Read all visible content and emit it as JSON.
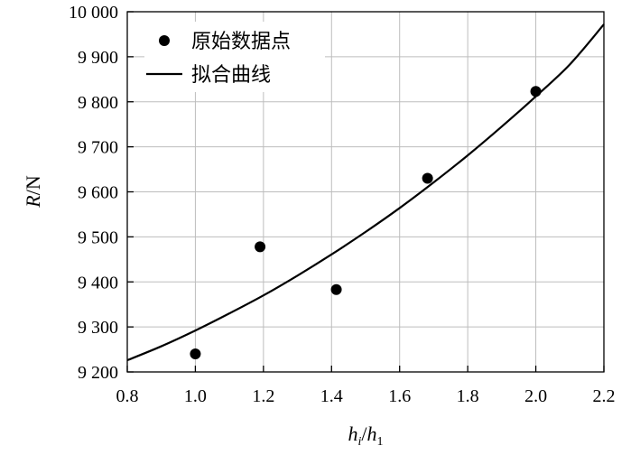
{
  "chart_data": {
    "type": "scatter",
    "xlabel": "h_i/h_1",
    "ylabel": "R/N",
    "xlim": [
      0.8,
      2.2
    ],
    "ylim": [
      9200,
      10000
    ],
    "x_ticks": [
      "0.8",
      "1.0",
      "1.2",
      "1.4",
      "1.6",
      "1.8",
      "2.0",
      "2.2"
    ],
    "y_ticks": [
      "9 200",
      "9 300",
      "9 400",
      "9 500",
      "9 600",
      "9 700",
      "9 800",
      "9 900",
      "10 000"
    ],
    "grid": true,
    "legend_position": "top-left",
    "series": [
      {
        "name": "原始数据点",
        "kind": "points",
        "x": [
          1.0,
          1.19,
          1.414,
          1.682,
          2.0
        ],
        "y": [
          9240,
          9478,
          9383,
          9630,
          9823
        ]
      },
      {
        "name": "拟合曲线",
        "kind": "line",
        "x": [
          0.8,
          0.9,
          1.0,
          1.1,
          1.2,
          1.3,
          1.4,
          1.5,
          1.6,
          1.7,
          1.8,
          1.9,
          2.0,
          2.1,
          2.2
        ],
        "y": [
          9226,
          9257,
          9292,
          9330,
          9370,
          9414,
          9461,
          9511,
          9564,
          9621,
          9681,
          9745,
          9812,
          9883,
          9972
        ]
      }
    ]
  }
}
